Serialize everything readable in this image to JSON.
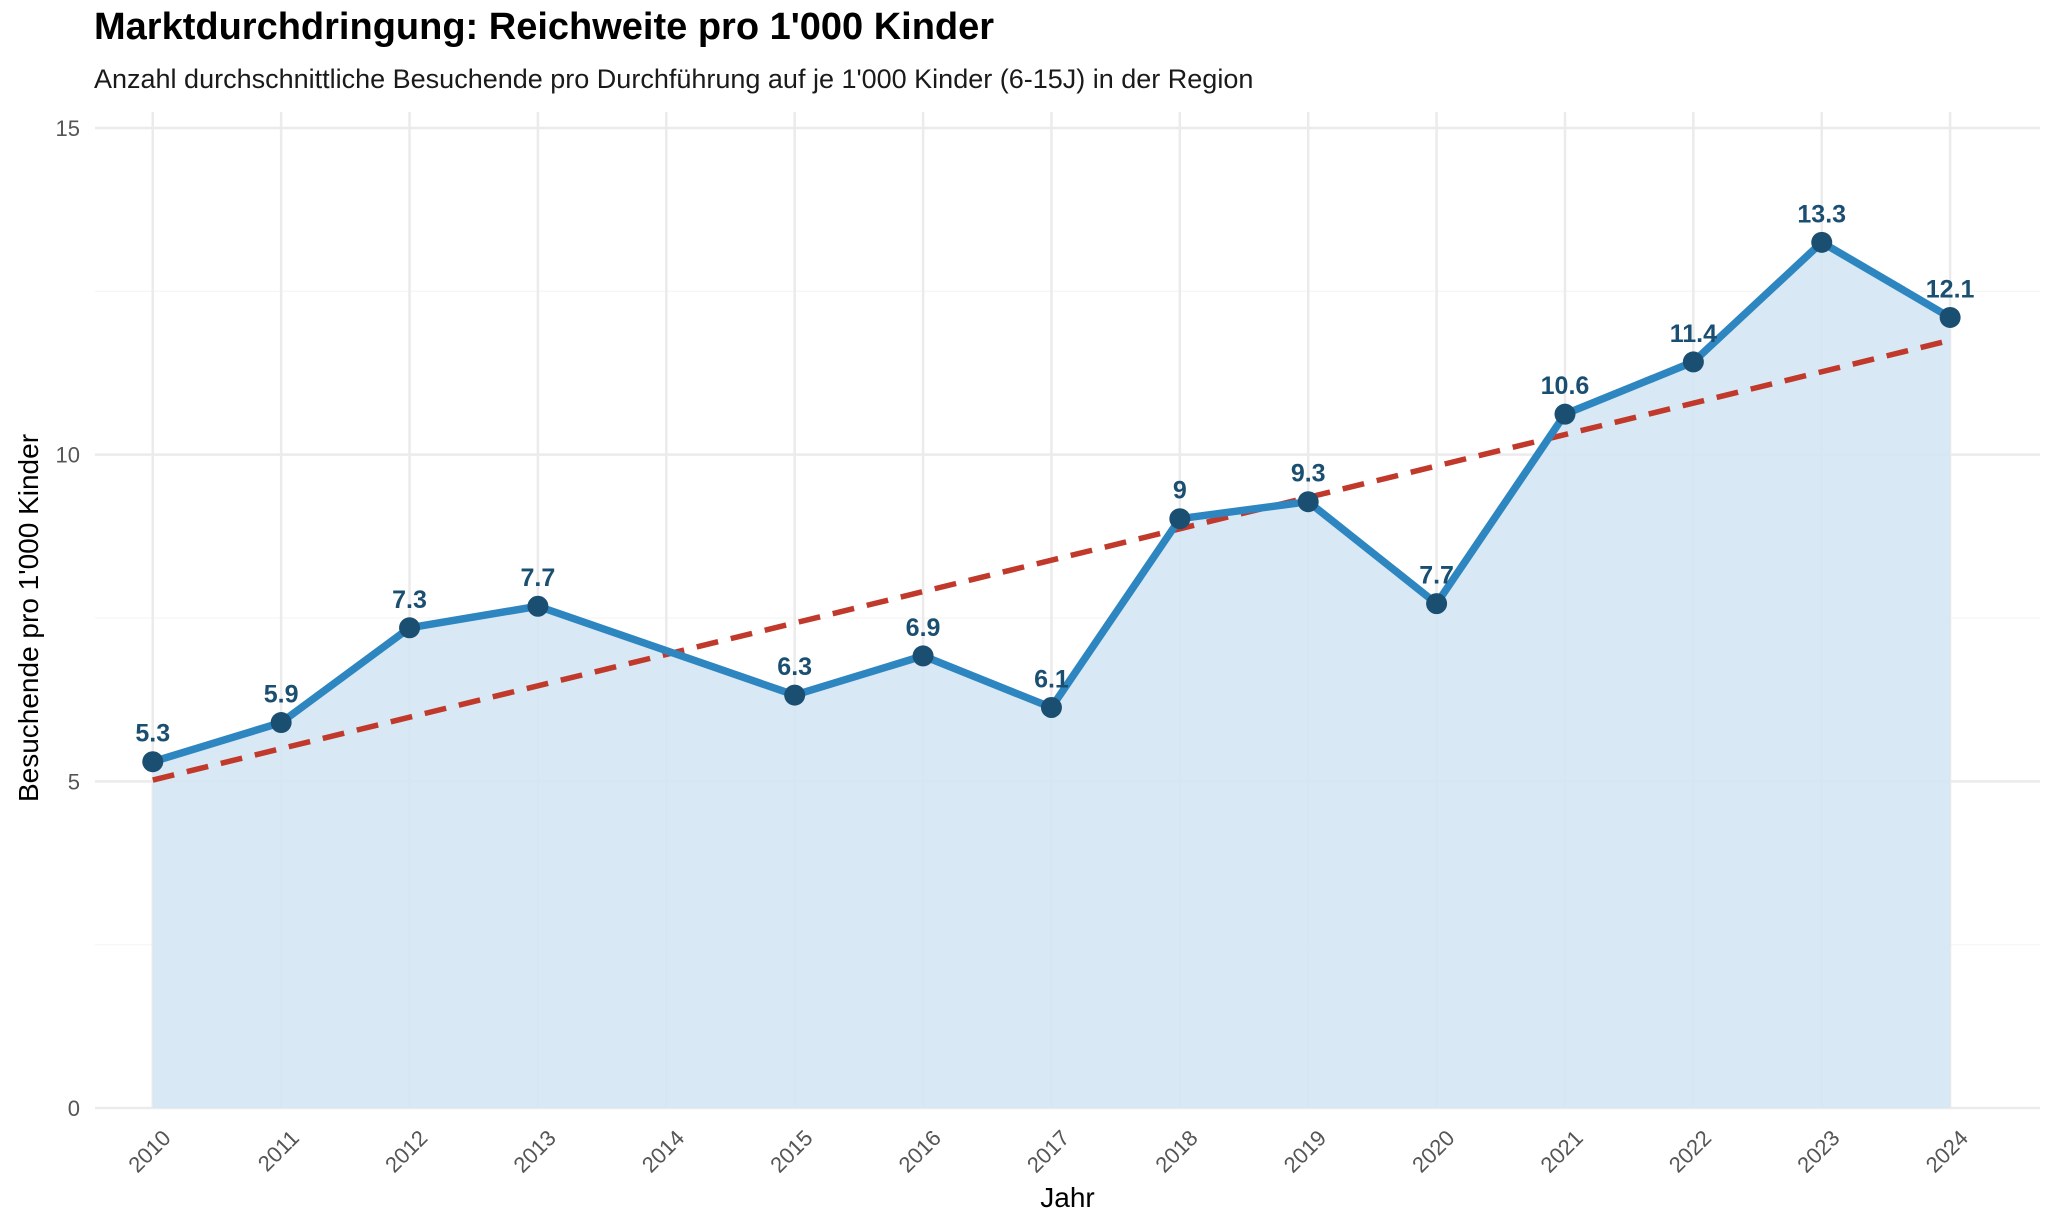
{
  "chart_data": {
    "type": "line",
    "title": "Marktdurchdringung: Reichweite pro 1'000 Kinder",
    "subtitle": "Anzahl durchschnittliche Besuchende pro Durchführung auf je 1'000 Kinder (6-15J) in der Region",
    "xlabel": "Jahr",
    "ylabel": "Besuchende pro 1'000 Kinder",
    "x": [
      2010,
      2011,
      2012,
      2013,
      2014,
      2015,
      2016,
      2017,
      2018,
      2019,
      2020,
      2021,
      2022,
      2023,
      2024
    ],
    "x_tick_labels": [
      "2010",
      "2011",
      "2012",
      "2013",
      "2014",
      "2015",
      "2016",
      "2017",
      "2018",
      "2019",
      "2020",
      "2021",
      "2022",
      "2023",
      "2024"
    ],
    "series": [
      {
        "values": [
          5.3,
          5.9,
          7.35,
          7.68,
          null,
          6.32,
          6.92,
          6.13,
          9.02,
          9.28,
          7.72,
          10.62,
          11.42,
          13.25,
          12.1
        ],
        "labels": [
          "5.3",
          "5.9",
          "7.3",
          "7.7",
          "",
          "6.3",
          "6.9",
          "6.1",
          "9",
          "9.3",
          "7.7",
          "10.6",
          "11.4",
          "13.3",
          "12.1"
        ],
        "color": "#2e86c1",
        "point_color": "#1b4f72",
        "fill": "#d4e6f3"
      }
    ],
    "trendline": {
      "x": [
        2010,
        2024
      ],
      "y": [
        5.02,
        11.75
      ],
      "color": "#c0392b",
      "style": "dashed"
    },
    "ylim": [
      0,
      15
    ],
    "y_ticks": [
      0,
      5,
      10,
      15
    ],
    "y_tick_labels": [
      "0",
      "5",
      "10",
      "15"
    ],
    "xlim": [
      2009.55,
      2024.7
    ],
    "grid": true,
    "legend": "none"
  }
}
